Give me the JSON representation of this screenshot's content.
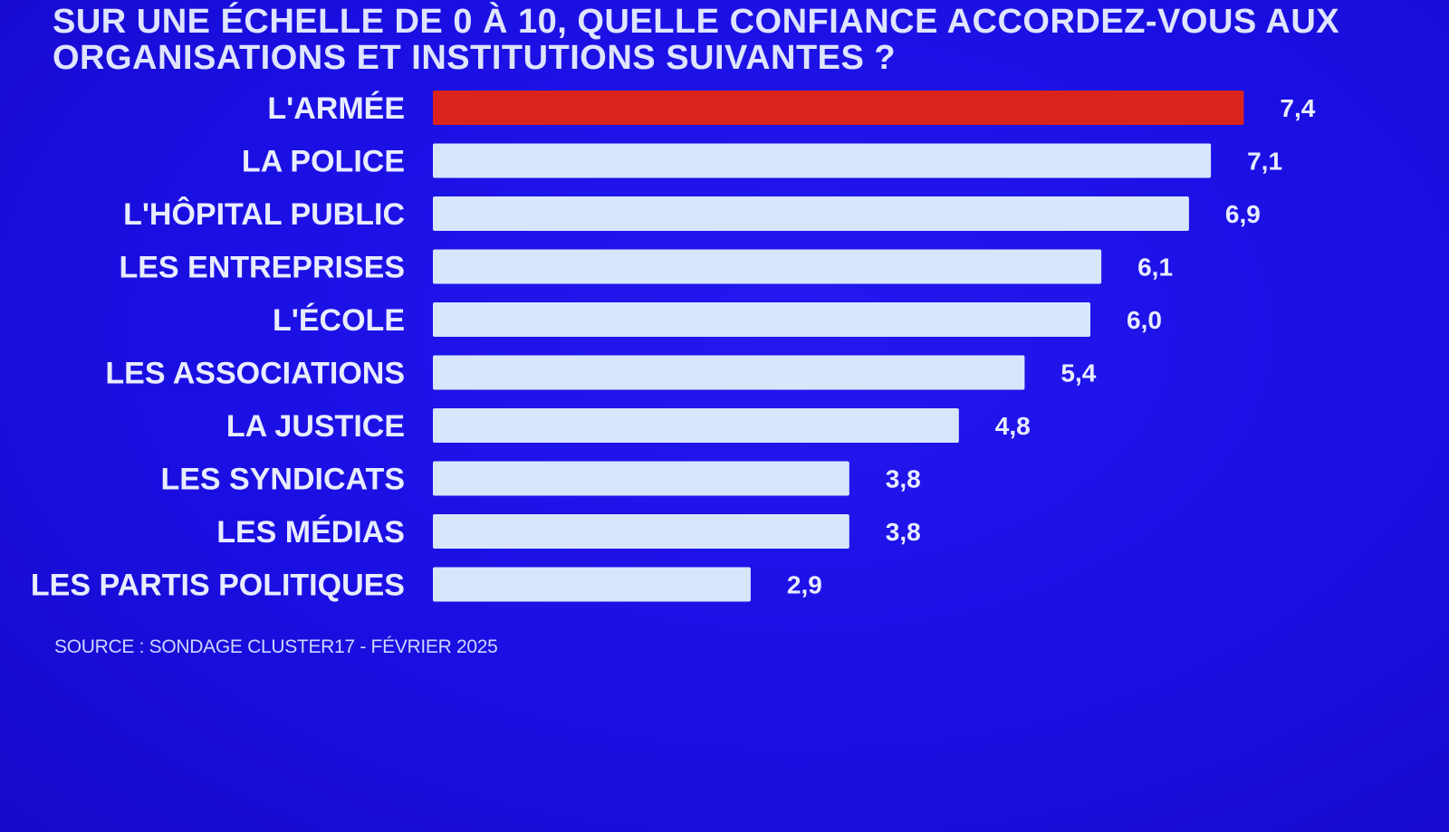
{
  "colors": {
    "background": "#1b10e6",
    "highlight_bar": "#d9231c",
    "bar": "#d8e6fb",
    "text": "#e8ecff"
  },
  "chart_data": {
    "type": "bar",
    "orientation": "horizontal",
    "title": "SUR UNE ÉCHELLE DE 0 À 10, QUELLE CONFIANCE ACCORDEZ-VOUS AUX ORGANISATIONS ET INSTITUTIONS SUIVANTES ?",
    "categories": [
      "L'ARMÉE",
      "LA POLICE",
      "L'HÔPITAL PUBLIC",
      "LES ENTREPRISES",
      "L'ÉCOLE",
      "LES ASSOCIATIONS",
      "LA JUSTICE",
      "LES SYNDICATS",
      "LES MÉDIAS",
      "LES PARTIS POLITIQUES"
    ],
    "values": [
      7.4,
      7.1,
      6.9,
      6.1,
      6.0,
      5.4,
      4.8,
      3.8,
      3.8,
      2.9
    ],
    "value_labels": [
      "7,4",
      "7,1",
      "6,9",
      "6,1",
      "6,0",
      "5,4",
      "4,8",
      "3,8",
      "3,8",
      "2,9"
    ],
    "highlighted_index": 0,
    "xlim": [
      0,
      10
    ],
    "grid": false,
    "legend": "none"
  },
  "source": "SOURCE : SONDAGE CLUSTER17 - FÉVRIER 2025"
}
